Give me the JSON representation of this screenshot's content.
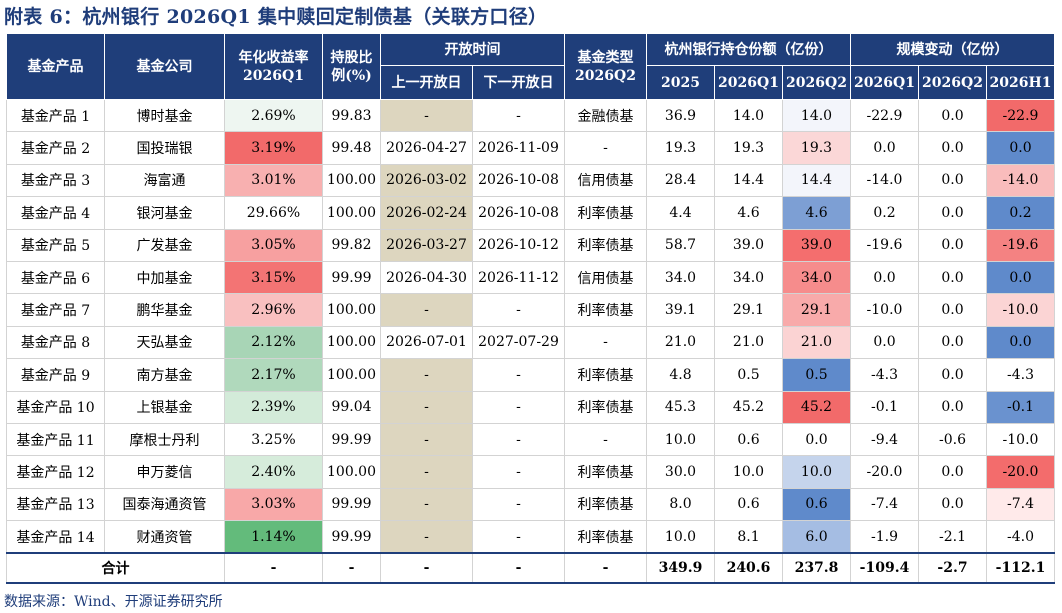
{
  "title": "附表 6：杭州银行 2026Q1 集中赎回定制债基（关联方口径）",
  "source": "数据来源：Wind、开源证券研究所",
  "headers": {
    "product": "基金产品",
    "company": "基金公司",
    "yield_line1": "年化收益率",
    "yield_line2": "2026Q1",
    "hold_line1": "持股比",
    "hold_line2": "例(%)",
    "open_group": "开放时间",
    "prev_open": "上一开放日",
    "next_open": "下一开放日",
    "type_line1": "基金类型",
    "type_line2": "2026Q2",
    "holdings_group": "杭州银行持仓份额（亿份）",
    "h2025": "2025",
    "h2026q1": "2026Q1",
    "h2026q2": "2026Q2",
    "change_group": "规模变动（亿份）",
    "c2026q1": "2026Q1",
    "c2026q2": "2026Q2",
    "c2026h1": "2026H1"
  },
  "rows": [
    {
      "product": "基金产品 1",
      "company": "博时基金",
      "yield": "2.69%",
      "yield_bg": "#eef6f1",
      "hold": "99.83",
      "prev": "-",
      "prev_bg": "#ddd6bf",
      "next": "-",
      "type": "金融债基",
      "h2025": "36.9",
      "h26q1": "14.0",
      "h26q2": "14.0",
      "h26q2_bg": "#f3f5fb",
      "c26q1": "-22.9",
      "c26q2": "0.0",
      "c26h1": "-22.9",
      "c26h1_bg": "#f26a6a"
    },
    {
      "product": "基金产品 2",
      "company": "国投瑞银",
      "yield": "3.19%",
      "yield_bg": "#f26a6a",
      "hold": "99.48",
      "prev": "2026-04-27",
      "prev_bg": "#ffffff",
      "next": "2026-11-09",
      "type": "-",
      "h2025": "19.3",
      "h26q1": "19.3",
      "h26q2": "19.3",
      "h26q2_bg": "#fbd7d7",
      "c26q1": "0.0",
      "c26q2": "0.0",
      "c26h1": "0.0",
      "c26h1_bg": "#5f8acb"
    },
    {
      "product": "基金产品 3",
      "company": "海富通",
      "yield": "3.01%",
      "yield_bg": "#f8b0b0",
      "hold": "100.00",
      "prev": "2026-03-02",
      "prev_bg": "#ddd6bf",
      "next": "2026-10-08",
      "type": "信用债基",
      "h2025": "28.4",
      "h26q1": "14.4",
      "h26q2": "14.4",
      "h26q2_bg": "#f3f5fb",
      "c26q1": "-14.0",
      "c26q2": "0.0",
      "c26h1": "-14.0",
      "c26h1_bg": "#f9bcbc"
    },
    {
      "product": "基金产品 4",
      "company": "银河基金",
      "yield": "29.66%",
      "yield_bg": "#ffffff",
      "hold": "100.00",
      "prev": "2026-02-24",
      "prev_bg": "#ddd6bf",
      "next": "2026-10-08",
      "type": "利率债基",
      "h2025": "4.4",
      "h26q1": "4.6",
      "h26q2": "4.6",
      "h26q2_bg": "#7d9fd4",
      "c26q1": "0.2",
      "c26q2": "0.0",
      "c26h1": "0.2",
      "c26h1_bg": "#5f8acb"
    },
    {
      "product": "基金产品 5",
      "company": "广发基金",
      "yield": "3.05%",
      "yield_bg": "#f7a0a0",
      "hold": "99.82",
      "prev": "2026-03-27",
      "prev_bg": "#ddd6bf",
      "next": "2026-10-12",
      "type": "利率债基",
      "h2025": "58.7",
      "h26q1": "39.0",
      "h26q2": "39.0",
      "h26q2_bg": "#f46e6e",
      "c26q1": "-19.6",
      "c26q2": "0.0",
      "c26h1": "-19.6",
      "c26h1_bg": "#f48282"
    },
    {
      "product": "基金产品 6",
      "company": "中加基金",
      "yield": "3.15%",
      "yield_bg": "#f37474",
      "hold": "99.99",
      "prev": "2026-04-30",
      "prev_bg": "#ffffff",
      "next": "2026-11-12",
      "type": "信用债基",
      "h2025": "34.0",
      "h26q1": "34.0",
      "h26q2": "34.0",
      "h26q2_bg": "#f68c8c",
      "c26q1": "0.0",
      "c26q2": "0.0",
      "c26h1": "0.0",
      "c26h1_bg": "#5f8acb"
    },
    {
      "product": "基金产品 7",
      "company": "鹏华基金",
      "yield": "2.96%",
      "yield_bg": "#f9c0c0",
      "hold": "100.00",
      "prev": "-",
      "prev_bg": "#ddd6bf",
      "next": "-",
      "type": "利率债基",
      "h2025": "39.1",
      "h26q1": "29.1",
      "h26q2": "29.1",
      "h26q2_bg": "#f8aaaa",
      "c26q1": "-10.0",
      "c26q2": "0.0",
      "c26h1": "-10.0",
      "c26h1_bg": "#fbd4d4"
    },
    {
      "product": "基金产品 8",
      "company": "天弘基金",
      "yield": "2.12%",
      "yield_bg": "#a8d5b6",
      "hold": "100.00",
      "prev": "2026-07-01",
      "prev_bg": "#ffffff",
      "next": "2027-07-29",
      "type": "-",
      "h2025": "21.0",
      "h26q1": "21.0",
      "h26q2": "21.0",
      "h26q2_bg": "#fbd3d3",
      "c26q1": "0.0",
      "c26q2": "0.0",
      "c26h1": "0.0",
      "c26h1_bg": "#5f8acb"
    },
    {
      "product": "基金产品 9",
      "company": "南方基金",
      "yield": "2.17%",
      "yield_bg": "#b0d9bc",
      "hold": "100.00",
      "prev": "-",
      "prev_bg": "#ddd6bf",
      "next": "-",
      "type": "利率债基",
      "h2025": "4.8",
      "h26q1": "0.5",
      "h26q2": "0.5",
      "h26q2_bg": "#5f8acb",
      "c26q1": "-4.3",
      "c26q2": "0.0",
      "c26h1": "-4.3",
      "c26h1_bg": "#ffffff"
    },
    {
      "product": "基金产品 10",
      "company": "上银基金",
      "yield": "2.39%",
      "yield_bg": "#d3ebd9",
      "hold": "99.04",
      "prev": "-",
      "prev_bg": "#ddd6bf",
      "next": "-",
      "type": "利率债基",
      "h2025": "45.3",
      "h26q1": "45.2",
      "h26q2": "45.2",
      "h26q2_bg": "#f26a6a",
      "c26q1": "-0.1",
      "c26q2": "0.0",
      "c26h1": "-0.1",
      "c26h1_bg": "#6a92cf"
    },
    {
      "product": "基金产品 11",
      "company": "摩根士丹利",
      "yield": "3.25%",
      "yield_bg": "#ffffff",
      "hold": "99.99",
      "prev": "-",
      "prev_bg": "#ddd6bf",
      "next": "-",
      "type": "-",
      "h2025": "10.0",
      "h26q1": "0.6",
      "h26q2": "0.0",
      "h26q2_bg": "#ffffff",
      "c26q1": "-9.4",
      "c26q2": "-0.6",
      "c26h1": "-10.0",
      "c26h1_bg": "#ffffff"
    },
    {
      "product": "基金产品 12",
      "company": "申万菱信",
      "yield": "2.40%",
      "yield_bg": "#d6ecdb",
      "hold": "100.00",
      "prev": "-",
      "prev_bg": "#ddd6bf",
      "next": "-",
      "type": "利率债基",
      "h2025": "30.0",
      "h26q1": "10.0",
      "h26q2": "10.0",
      "h26q2_bg": "#c5d4ec",
      "c26q1": "-20.0",
      "c26q2": "0.0",
      "c26h1": "-20.0",
      "c26h1_bg": "#f36c6c"
    },
    {
      "product": "基金产品 13",
      "company": "国泰海通资管",
      "yield": "3.03%",
      "yield_bg": "#f8a8a8",
      "hold": "99.99",
      "prev": "-",
      "prev_bg": "#ddd6bf",
      "next": "-",
      "type": "利率债基",
      "h2025": "8.0",
      "h26q1": "0.6",
      "h26q2": "0.6",
      "h26q2_bg": "#5f8acb",
      "c26q1": "-7.4",
      "c26q2": "0.0",
      "c26h1": "-7.4",
      "c26h1_bg": "#ffeaea"
    },
    {
      "product": "基金产品 14",
      "company": "财通资管",
      "yield": "1.14%",
      "yield_bg": "#63bb7b",
      "hold": "99.99",
      "prev": "-",
      "prev_bg": "#ddd6bf",
      "next": "-",
      "type": "利率债基",
      "h2025": "10.0",
      "h26q1": "8.1",
      "h26q2": "6.0",
      "h26q2_bg": "#a5bde3",
      "c26q1": "-1.9",
      "c26q2": "-2.1",
      "c26h1": "-4.0",
      "c26h1_bg": "#ffffff"
    }
  ],
  "total": {
    "label": "合计",
    "yield": "-",
    "hold": "-",
    "prev": "-",
    "next": "-",
    "type": "-",
    "h2025": "349.9",
    "h26q1": "240.6",
    "h26q2": "237.8",
    "c26q1": "-109.4",
    "c26q2": "-2.7",
    "c26h1": "-112.1"
  }
}
